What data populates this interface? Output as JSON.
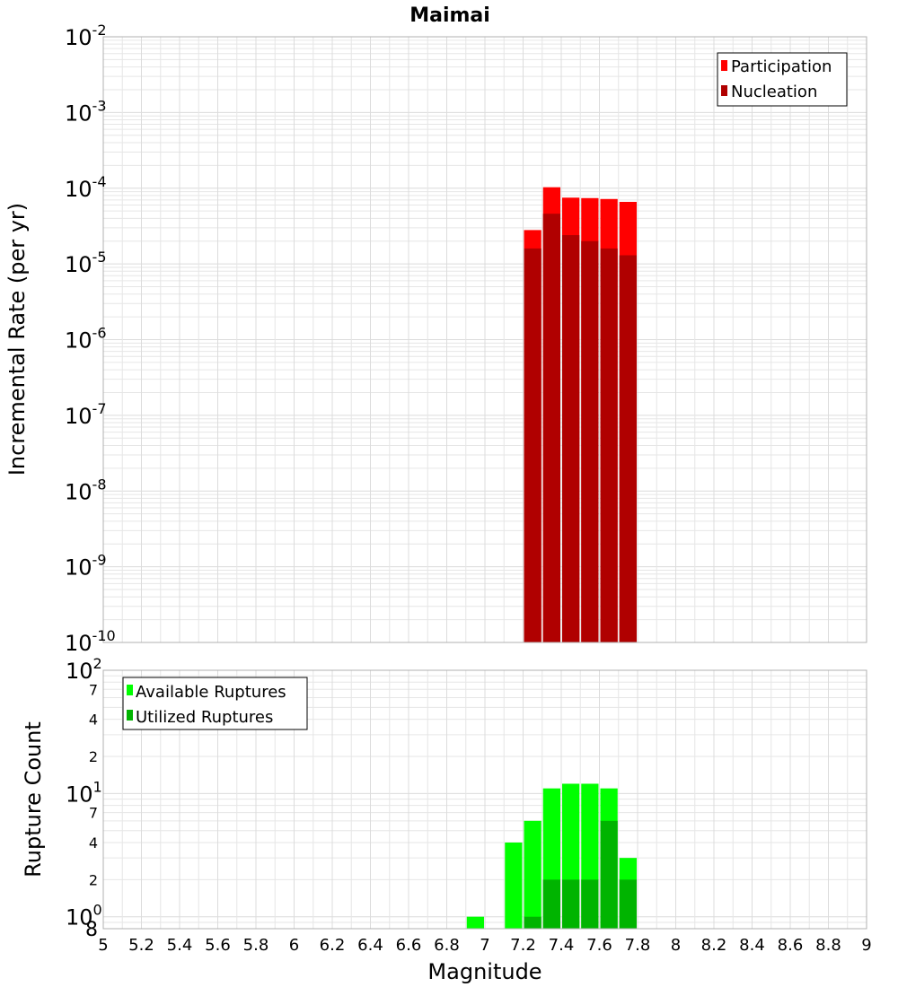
{
  "chart_data": [
    {
      "type": "bar",
      "title": "Maimai",
      "xlabel": "",
      "ylabel": "Incremental Rate (per yr)",
      "xlim": [
        5,
        9
      ],
      "ylim": [
        1e-10,
        0.01
      ],
      "yscale": "log",
      "grid": true,
      "legend_position": "top-right",
      "x": [
        7.25,
        7.35,
        7.45,
        7.55,
        7.65,
        7.75
      ],
      "series": [
        {
          "name": "Participation",
          "color": "#ff0000",
          "values": [
            2.8e-05,
            0.000103,
            7.5e-05,
            7.4e-05,
            7.2e-05,
            6.6e-05
          ]
        },
        {
          "name": "Nucleation",
          "color": "#b00000",
          "values": [
            1.6e-05,
            4.6e-05,
            2.4e-05,
            2e-05,
            1.6e-05,
            1.3e-05
          ]
        }
      ],
      "y_tick_labels": [
        {
          "base": "10",
          "exp": "-2"
        },
        {
          "base": "10",
          "exp": "-3"
        },
        {
          "base": "10",
          "exp": "-4"
        },
        {
          "base": "10",
          "exp": "-5"
        },
        {
          "base": "10",
          "exp": "-6"
        },
        {
          "base": "10",
          "exp": "-7"
        },
        {
          "base": "10",
          "exp": "-8"
        },
        {
          "base": "10",
          "exp": "-9"
        },
        {
          "base": "10",
          "exp": "-10"
        }
      ]
    },
    {
      "type": "bar",
      "xlabel": "Magnitude",
      "ylabel": "Rupture Count",
      "xlim": [
        5,
        9
      ],
      "ylim": [
        0.8,
        100
      ],
      "yscale": "log",
      "grid": true,
      "legend_position": "top-left",
      "x_ticks": [
        "5",
        "5.2",
        "5.4",
        "5.6",
        "5.8",
        "6",
        "6.2",
        "6.4",
        "6.6",
        "6.8",
        "7",
        "7.2",
        "7.4",
        "7.6",
        "7.8",
        "8",
        "8.2",
        "8.4",
        "8.6",
        "8.8",
        "9"
      ],
      "series": [
        {
          "name": "Available Ruptures",
          "color": "#00ff00",
          "x": [
            6.95,
            7.15,
            7.25,
            7.35,
            7.45,
            7.55,
            7.65,
            7.75
          ],
          "values": [
            1,
            4,
            6,
            11,
            12,
            12,
            11,
            3
          ]
        },
        {
          "name": "Utilized Ruptures",
          "color": "#00b400",
          "x": [
            7.25,
            7.35,
            7.45,
            7.55,
            7.65,
            7.75
          ],
          "values": [
            1,
            2,
            2,
            2,
            6,
            2
          ]
        }
      ],
      "y_tick_labels": [
        {
          "base": "10",
          "exp": "2"
        },
        {
          "base": "",
          "exp": "7"
        },
        {
          "base": "",
          "exp": "4"
        },
        {
          "base": "",
          "exp": "2"
        },
        {
          "base": "10",
          "exp": "1"
        },
        {
          "base": "",
          "exp": "7"
        },
        {
          "base": "",
          "exp": "4"
        },
        {
          "base": "",
          "exp": "2"
        },
        {
          "base": "10",
          "exp": "0"
        },
        {
          "base": "8",
          "exp": ""
        }
      ]
    }
  ]
}
